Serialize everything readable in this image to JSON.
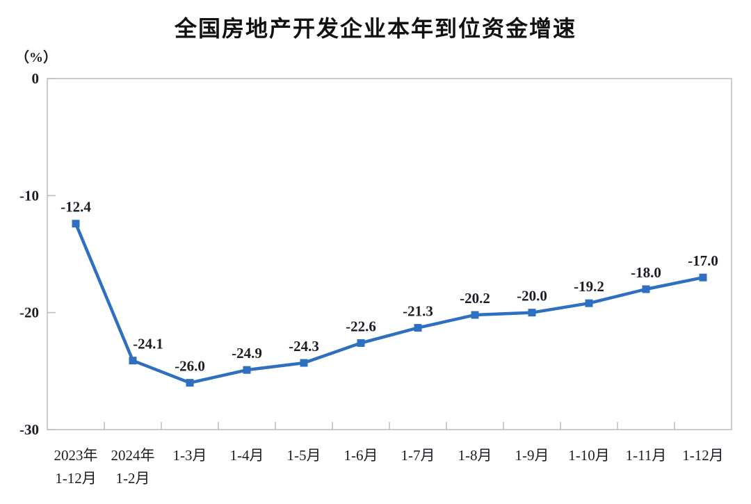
{
  "page": {
    "background": "#FFFFFF"
  },
  "chart_data": {
    "type": "line",
    "title": "全国房地产开发企业本年到位资金增速",
    "unit_label": "（%）",
    "categories": [
      [
        "2023年",
        "1-12月"
      ],
      [
        "2024年",
        "1-2月"
      ],
      [
        "1-3月"
      ],
      [
        "1-4月"
      ],
      [
        "1-5月"
      ],
      [
        "1-6月"
      ],
      [
        "1-7月"
      ],
      [
        "1-8月"
      ],
      [
        "1-9月"
      ],
      [
        "1-10月"
      ],
      [
        "1-11月"
      ],
      [
        "1-12月"
      ]
    ],
    "values": [
      -12.4,
      -24.1,
      -26.0,
      -24.9,
      -24.3,
      -22.6,
      -21.3,
      -20.2,
      -20.0,
      -19.2,
      -18.0,
      -17.0
    ],
    "data_labels": [
      "-12.4",
      "-24.1",
      "-26.0",
      "-24.9",
      "-24.3",
      "-22.6",
      "-21.3",
      "-20.2",
      "-20.0",
      "-19.2",
      "-18.0",
      "-17.0"
    ],
    "xlabel": "",
    "ylabel": "（%）",
    "ylim": [
      -30,
      0
    ],
    "yticks": [
      0,
      -10,
      -20,
      -30
    ],
    "grid": false,
    "legend": "none",
    "marker": "square",
    "line_color": "#2E6FC1",
    "text_color": "#1C1C24",
    "axis_color": "#BFBFBF"
  }
}
